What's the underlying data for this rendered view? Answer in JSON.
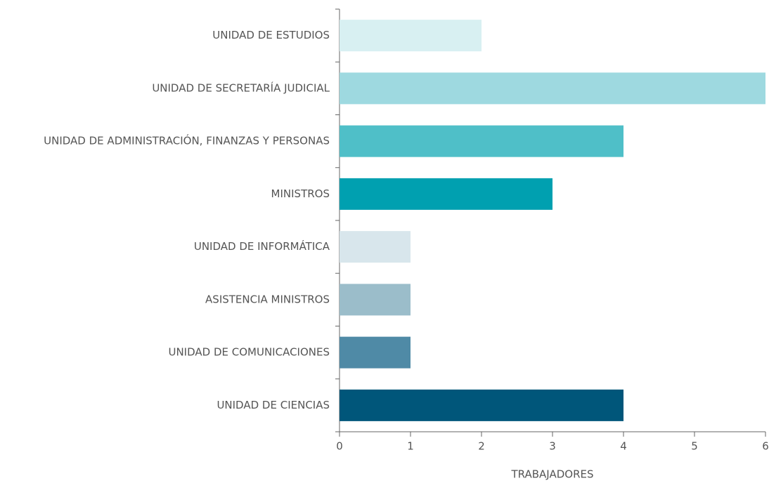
{
  "chart_data": {
    "type": "bar",
    "orientation": "horizontal",
    "categories": [
      "UNIDAD DE ESTUDIOS",
      "UNIDAD DE SECRETARÍA JUDICIAL",
      "UNIDAD DE ADMINISTRACIÓN, FINANZAS Y PERSONAS",
      "MINISTROS",
      "UNIDAD DE INFORMÁTICA",
      "ASISTENCIA MINISTROS",
      "UNIDAD DE COMUNICACIONES",
      "UNIDAD DE CIENCIAS"
    ],
    "values": [
      2,
      6,
      4,
      3,
      1,
      1,
      1,
      4
    ],
    "colors": [
      "#d8f0f2",
      "#9ed9e0",
      "#4fbfc8",
      "#00a0b0",
      "#d8e6ec",
      "#9bbdca",
      "#4f8aa6",
      "#00567a"
    ],
    "xlabel": "TRABAJADORES",
    "xlim": [
      0,
      6
    ],
    "xticks": [
      0,
      1,
      2,
      3,
      4,
      5,
      6
    ],
    "grid": false
  }
}
